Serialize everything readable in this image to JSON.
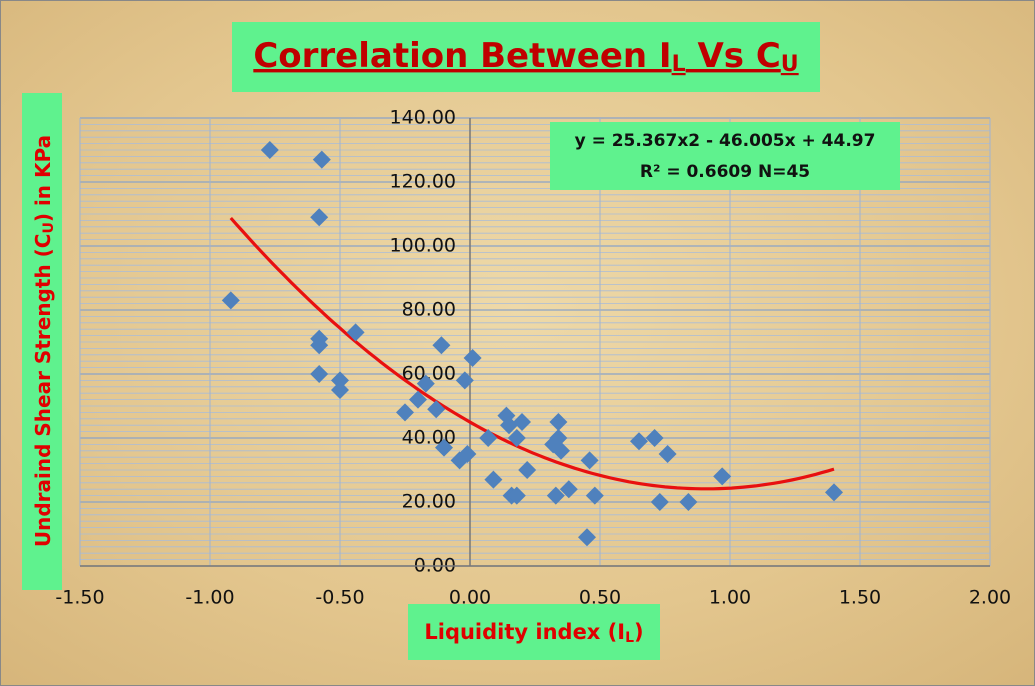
{
  "chart_data": {
    "type": "scatter",
    "title_parts": [
      "Correlation Between I",
      "L",
      " Vs C",
      "U"
    ],
    "ylabel_parts": [
      "Undraind Shear Strength (C",
      "U",
      ") in KPa"
    ],
    "xlabel_parts": [
      "Liquidity index (I",
      "L",
      ")"
    ],
    "trendline": {
      "equation": "y = 25.367x2 - 46.005x + 44.97",
      "stats": "R² = 0.6609 N=45",
      "coefficients": [
        25.367,
        -46.005,
        44.97
      ],
      "color": "#e81010"
    },
    "color": "#4f81bd",
    "grid": true,
    "x": [
      -0.92,
      -0.77,
      -0.57,
      -0.58,
      -0.58,
      -0.58,
      -0.58,
      -0.5,
      -0.5,
      -0.44,
      -0.25,
      -0.2,
      -0.17,
      -0.13,
      -0.11,
      -0.1,
      -0.04,
      -0.02,
      -0.01,
      0.01,
      0.07,
      0.09,
      0.14,
      0.15,
      0.16,
      0.18,
      0.18,
      0.2,
      0.22,
      0.32,
      0.33,
      0.34,
      0.34,
      0.35,
      0.38,
      0.45,
      0.46,
      0.48,
      0.65,
      0.71,
      0.73,
      0.76,
      0.84,
      0.97,
      1.4
    ],
    "values": [
      83,
      130,
      127,
      109,
      71,
      69,
      60,
      58,
      55,
      73,
      48,
      52,
      57,
      49,
      69,
      37,
      33,
      58,
      35,
      65,
      40,
      27,
      47,
      44,
      22,
      22,
      40,
      45,
      30,
      38,
      22,
      45,
      40,
      36,
      24,
      9,
      33,
      22,
      39,
      40,
      20,
      35,
      20,
      28,
      23
    ],
    "xlim": [
      -1.5,
      2.0
    ],
    "ylim": [
      0,
      140
    ],
    "xticks": [
      {
        "value": -1.5,
        "label": "-1.50"
      },
      {
        "value": -1.0,
        "label": "-1.00"
      },
      {
        "value": -0.5,
        "label": "-0.50"
      },
      {
        "value": 0,
        "label": "0.00"
      },
      {
        "value": 0.5,
        "label": "0.50"
      },
      {
        "value": 1.0,
        "label": "1.00"
      },
      {
        "value": 1.5,
        "label": "1.50"
      },
      {
        "value": 2.0,
        "label": "2.00"
      }
    ],
    "yticks": [
      {
        "value": 0,
        "label": "0.00"
      },
      {
        "value": 20,
        "label": "20.00"
      },
      {
        "value": 40,
        "label": "40.00"
      },
      {
        "value": 60,
        "label": "60.00"
      },
      {
        "value": 80,
        "label": "80.00"
      },
      {
        "value": 100,
        "label": "100.00"
      },
      {
        "value": 120,
        "label": "120.00"
      },
      {
        "value": 140,
        "label": "140.00"
      }
    ]
  }
}
